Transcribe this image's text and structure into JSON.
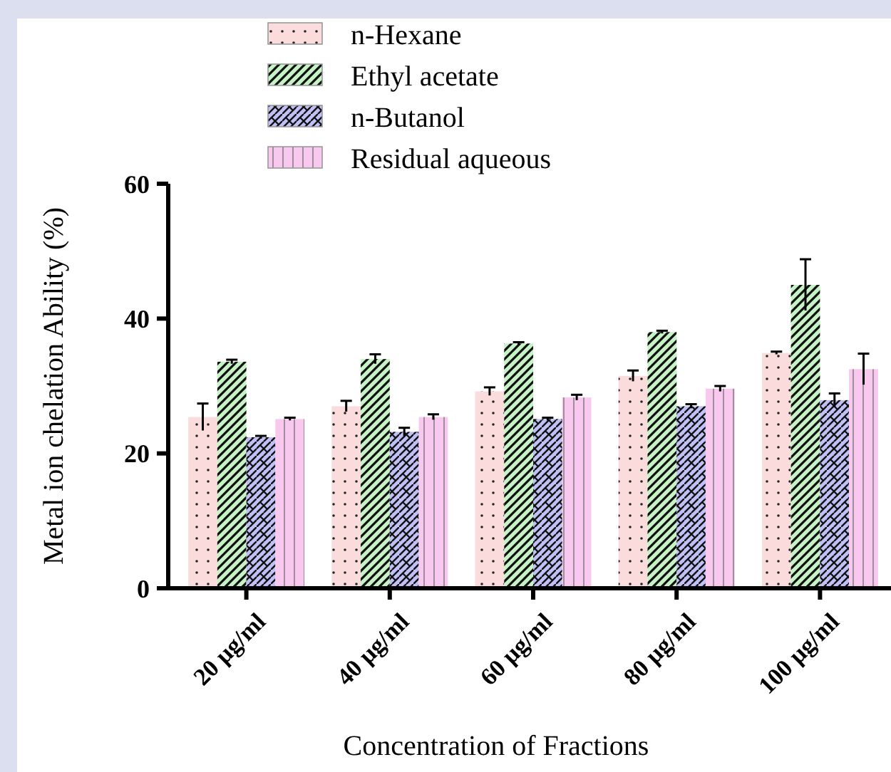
{
  "chart_data": {
    "type": "bar",
    "xlabel": "Concentration of Fractions",
    "ylabel": "Metal ion chelation Ability (%)",
    "categories": [
      "20 µg/ml",
      "40 µg/ml",
      "60 µg/ml",
      "80 µg/ml",
      "100 µg/ml"
    ],
    "series": [
      {
        "name": "n-Hexane",
        "color": "#fbdcdc",
        "values": [
          25.4,
          27.0,
          29.2,
          31.5,
          34.9
        ],
        "errors": [
          2.0,
          0.8,
          0.6,
          0.8,
          0.2
        ]
      },
      {
        "name": "Ethyl acetate",
        "color": "#c6f2c6",
        "values": [
          33.6,
          34.0,
          36.3,
          38.0,
          45.0
        ],
        "errors": [
          0.3,
          0.7,
          0.2,
          0.2,
          3.8
        ]
      },
      {
        "name": "n-Butanol",
        "color": "#c0c0f6",
        "values": [
          22.4,
          23.2,
          25.1,
          27.0,
          27.9
        ],
        "errors": [
          0.2,
          0.6,
          0.2,
          0.3,
          1.0
        ]
      },
      {
        "name": "Residual aqueous",
        "color": "#f8c8ee",
        "values": [
          25.1,
          25.4,
          28.3,
          29.6,
          32.5
        ],
        "errors": [
          0.2,
          0.4,
          0.4,
          0.4,
          2.3
        ]
      }
    ],
    "ylim": [
      0,
      60
    ],
    "yticks": [
      0,
      20,
      40,
      60
    ],
    "grid": false,
    "legend": "top"
  }
}
